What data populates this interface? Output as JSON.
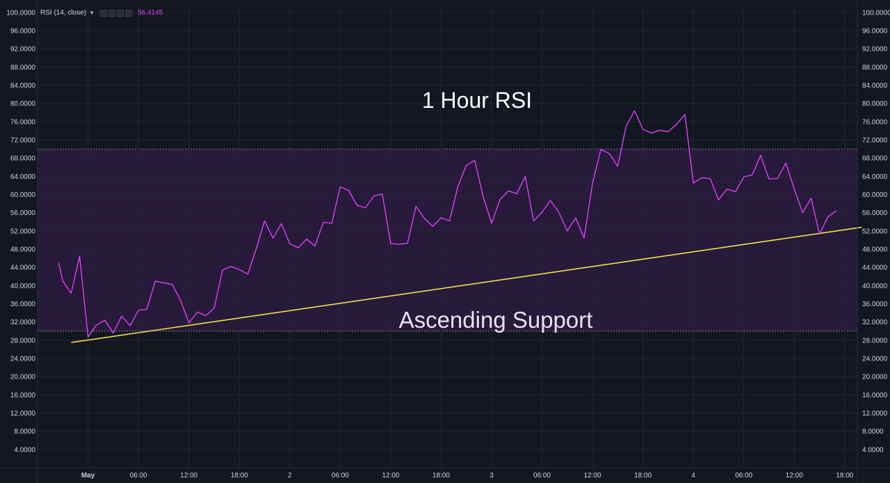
{
  "legend": {
    "indicator": "RSI (14, close)",
    "value": "56.4145"
  },
  "colors": {
    "background": "#131722",
    "rsi_line": "#e040fb",
    "band_fill": "#2a1b3d",
    "support_line": "#f2e24b",
    "grid": "#232733",
    "axis_text": "#d1d4dc"
  },
  "icons": [
    "settings-icon",
    "source-icon",
    "plus-icon",
    "close-icon"
  ],
  "chart_data": {
    "type": "line",
    "title": "1 Hour RSI",
    "annotation": "Ascending Support",
    "ylim": [
      0,
      101.5
    ],
    "y_ticks": [
      "4.0000",
      "8.0000",
      "12.0000",
      "16.0000",
      "20.0000",
      "24.0000",
      "28.0000",
      "32.0000",
      "36.0000",
      "40.0000",
      "44.0000",
      "48.0000",
      "52.0000",
      "56.0000",
      "60.0000",
      "64.0000",
      "68.0000",
      "72.0000",
      "76.0000",
      "80.0000",
      "84.0000",
      "88.0000",
      "92.0000",
      "96.0000",
      "100.0000"
    ],
    "x_range_hours": [
      -6,
      91.5
    ],
    "x_ticks": [
      {
        "hour": 0,
        "label": "May",
        "bold": true
      },
      {
        "hour": 6,
        "label": "06:00"
      },
      {
        "hour": 12,
        "label": "12:00"
      },
      {
        "hour": 18,
        "label": "18:00"
      },
      {
        "hour": 24,
        "label": "2"
      },
      {
        "hour": 30,
        "label": "06:00"
      },
      {
        "hour": 36,
        "label": "12:00"
      },
      {
        "hour": 42,
        "label": "18:00"
      },
      {
        "hour": 48,
        "label": "3"
      },
      {
        "hour": 54,
        "label": "06:00"
      },
      {
        "hour": 60,
        "label": "12:00"
      },
      {
        "hour": 66,
        "label": "18:00"
      },
      {
        "hour": 72,
        "label": "4"
      },
      {
        "hour": 78,
        "label": "06:00"
      },
      {
        "hour": 84,
        "label": "12:00"
      },
      {
        "hour": 90,
        "label": "18:00"
      }
    ],
    "bands": {
      "upper": 70,
      "lower": 30
    },
    "support_line": {
      "start": [
        -2,
        27.5
      ],
      "end": [
        92,
        52.8
      ]
    },
    "series": [
      {
        "values": [
          [
            -3.5,
            45
          ],
          [
            -3,
            41
          ],
          [
            -2,
            38.3
          ],
          [
            -1,
            46.5
          ],
          [
            0,
            28.7
          ],
          [
            1,
            31.3
          ],
          [
            2,
            32.4
          ],
          [
            3,
            29.6
          ],
          [
            4,
            33.3
          ],
          [
            5,
            31.2
          ],
          [
            6,
            34.6
          ],
          [
            7,
            34.8
          ],
          [
            8,
            41
          ],
          [
            9,
            40.6
          ],
          [
            10,
            40.3
          ],
          [
            11,
            36.8
          ],
          [
            12,
            31.8
          ],
          [
            13,
            34.2
          ],
          [
            14,
            33.4
          ],
          [
            15,
            35
          ],
          [
            16,
            43.4
          ],
          [
            17,
            44.2
          ],
          [
            18,
            43.5
          ],
          [
            19,
            42.5
          ],
          [
            20,
            48
          ],
          [
            21,
            54.2
          ],
          [
            22,
            50.4
          ],
          [
            23,
            53.6
          ],
          [
            24,
            49.2
          ],
          [
            25,
            48.3
          ],
          [
            26,
            50.2
          ],
          [
            27,
            48.7
          ],
          [
            28,
            53.9
          ],
          [
            29,
            53.7
          ],
          [
            30,
            61.7
          ],
          [
            31,
            60.9
          ],
          [
            32,
            57.6
          ],
          [
            33,
            57.1
          ],
          [
            34,
            59.7
          ],
          [
            35,
            60.1
          ],
          [
            36,
            49.2
          ],
          [
            37,
            49.1
          ],
          [
            38,
            49.3
          ],
          [
            39,
            57.4
          ],
          [
            40,
            54.8
          ],
          [
            41,
            53
          ],
          [
            42,
            54.9
          ],
          [
            43,
            54.2
          ],
          [
            44,
            61.8
          ],
          [
            45,
            66.4
          ],
          [
            46,
            67.5
          ],
          [
            47,
            59.5
          ],
          [
            48,
            53.7
          ],
          [
            49,
            58.9
          ],
          [
            50,
            60.8
          ],
          [
            51,
            60.2
          ],
          [
            52,
            64
          ],
          [
            53,
            54.2
          ],
          [
            54,
            56.1
          ],
          [
            55,
            58.7
          ],
          [
            56,
            56.1
          ],
          [
            57,
            52
          ],
          [
            58,
            54.9
          ],
          [
            59,
            50.4
          ],
          [
            60,
            62.4
          ],
          [
            61,
            69.9
          ],
          [
            62,
            69
          ],
          [
            63,
            66.2
          ],
          [
            64,
            75
          ],
          [
            65,
            78.4
          ],
          [
            66,
            74.3
          ],
          [
            67,
            73.5
          ],
          [
            68,
            74.1
          ],
          [
            69,
            73.8
          ],
          [
            70,
            75.4
          ],
          [
            71,
            77.6
          ],
          [
            72,
            62.5
          ],
          [
            73,
            63.7
          ],
          [
            74,
            63.5
          ],
          [
            75,
            58.8
          ],
          [
            76,
            61.2
          ],
          [
            77,
            60.6
          ],
          [
            78,
            63.9
          ],
          [
            79,
            64.3
          ],
          [
            80,
            68.6
          ],
          [
            81,
            63.4
          ],
          [
            82,
            63.5
          ],
          [
            83,
            66.9
          ],
          [
            84,
            61.2
          ],
          [
            85,
            56
          ],
          [
            86,
            59.2
          ],
          [
            87,
            51.3
          ],
          [
            88,
            55.1
          ],
          [
            89,
            56.4
          ]
        ]
      }
    ]
  }
}
